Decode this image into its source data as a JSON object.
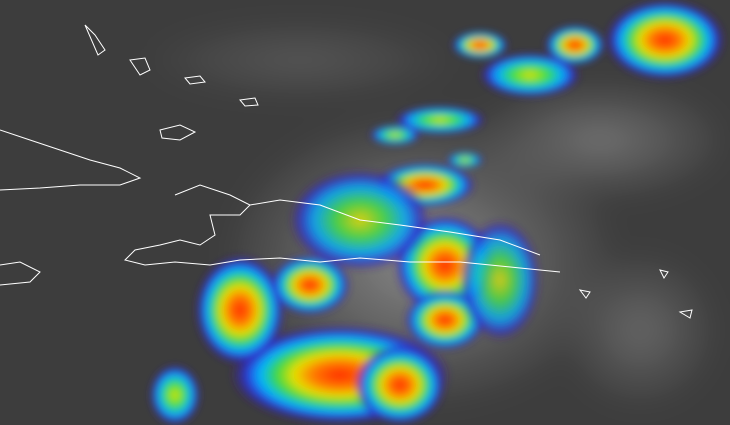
{
  "image": {
    "kind": "infrared satellite imagery with coastline outlines",
    "colors": {
      "background": "#3d3d3d",
      "cloud_gray": "#9a9a9a",
      "coastline": "#ffffff",
      "scale": [
        "#2a0a6e",
        "#2b36d9",
        "#00c8ff",
        "#22d84a",
        "#d8f000",
        "#ff9a00",
        "#ff2a00"
      ]
    }
  }
}
